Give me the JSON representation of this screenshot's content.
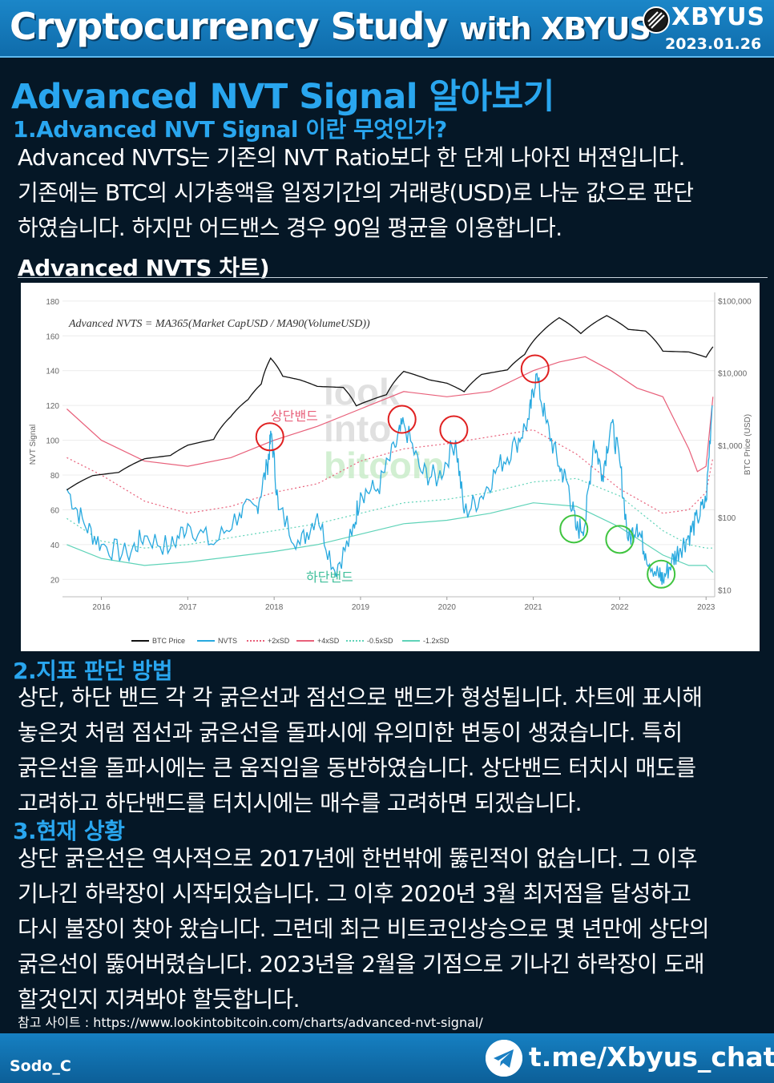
{
  "header": {
    "title_main": "Cryptocurrency Study",
    "title_with": "with XBYUS",
    "brand": "XBYUS",
    "date": "2023.01.26"
  },
  "main_title": "Advanced NVT Signal 알아보기",
  "section1": {
    "heading": "1.Advanced NVT Signal 이란 무엇인가?",
    "lines": [
      "Advanced NVTS는 기존의 NVT Ratio보다 한 단계 나아진 버젼입니다.",
      "기존에는 BTC의 시가총액을 일정기간의 거래량(USD)로 나눈 값으로 판단",
      "하였습니다. 하지만 어드밴스 경우 90일 평균을 이용합니다."
    ]
  },
  "chart_heading": "Advanced NVTS 차트)",
  "chart_data": {
    "type": "line",
    "formula": "Advanced NVTS = MA365(Market CapUSD / MA90(VolumeUSD))",
    "watermark": [
      "look",
      "into",
      "bitcoin"
    ],
    "x_ticks": [
      "2016",
      "2017",
      "2018",
      "2019",
      "2020",
      "2021",
      "2022",
      "2023"
    ],
    "x_range": [
      2015.55,
      2023.1
    ],
    "y_left": {
      "label": "NVT Signal",
      "ticks": [
        20,
        40,
        60,
        80,
        100,
        120,
        140,
        160,
        180
      ],
      "range": [
        10,
        185
      ]
    },
    "y_right": {
      "label": "BTC Price (USD)",
      "ticks": [
        "$10",
        "$100",
        "$1,000",
        "$10,000",
        "$100,000"
      ],
      "scale": "log",
      "range": [
        8,
        130000
      ]
    },
    "annotations": {
      "upper": "상단밴드",
      "lower": "하단밴드"
    },
    "legend": [
      "BTC Price",
      "NVTS",
      "+2xSD",
      "+4xSD",
      "-0.5xSD",
      "-1.2xSD"
    ],
    "legend_placement": "bottom",
    "colors": {
      "btc": "#111111",
      "nvts": "#28a9df",
      "plus2": "#e8607a",
      "plus4": "#e8607a",
      "minus05": "#5fd3b8",
      "minus12": "#5fd3b8",
      "circle_red": "#e02020",
      "circle_green": "#3fc43f"
    },
    "series": [
      {
        "name": "BTC Price",
        "axis": "right",
        "x": [
          2015.6,
          2015.9,
          2016.2,
          2016.5,
          2016.8,
          2017.0,
          2017.3,
          2017.5,
          2017.7,
          2017.85,
          2017.96,
          2018.1,
          2018.3,
          2018.5,
          2018.8,
          2018.95,
          2019.3,
          2019.5,
          2019.8,
          2020.0,
          2020.2,
          2020.4,
          2020.7,
          2020.9,
          2021.1,
          2021.3,
          2021.55,
          2021.85,
          2022.1,
          2022.3,
          2022.5,
          2022.8,
          2023.0,
          2023.08
        ],
        "y": [
          240,
          380,
          420,
          650,
          720,
          1000,
          1200,
          2500,
          4300,
          7000,
          16000,
          9000,
          8000,
          6500,
          6300,
          3500,
          5000,
          10500,
          8000,
          7200,
          5500,
          9500,
          11000,
          18000,
          37000,
          58000,
          35000,
          62000,
          40000,
          38000,
          20000,
          19500,
          16500,
          23000
        ]
      },
      {
        "name": "NVTS",
        "axis": "left",
        "x": [
          2015.6,
          2015.8,
          2016.0,
          2016.3,
          2016.5,
          2016.8,
          2017.0,
          2017.3,
          2017.6,
          2017.8,
          2017.92,
          2017.97,
          2018.05,
          2018.3,
          2018.5,
          2018.7,
          2018.9,
          2019.0,
          2019.2,
          2019.4,
          2019.5,
          2019.7,
          2019.9,
          2020.1,
          2020.2,
          2020.4,
          2020.6,
          2020.8,
          2020.95,
          2021.03,
          2021.15,
          2021.3,
          2021.4,
          2021.5,
          2021.6,
          2021.7,
          2021.8,
          2021.9,
          2022.0,
          2022.1,
          2022.2,
          2022.3,
          2022.45,
          2022.5,
          2022.6,
          2022.7,
          2022.8,
          2022.9,
          2023.0,
          2023.07
        ],
        "y": [
          72,
          52,
          40,
          34,
          45,
          38,
          52,
          40,
          58,
          62,
          85,
          104,
          60,
          40,
          58,
          25,
          45,
          70,
          72,
          96,
          110,
          82,
          78,
          100,
          58,
          68,
          85,
          98,
          112,
          138,
          110,
          85,
          75,
          48,
          52,
          100,
          80,
          110,
          88,
          42,
          52,
          35,
          22,
          20,
          30,
          38,
          45,
          55,
          65,
          120
        ]
      },
      {
        "name": "+2xSD",
        "axis": "left",
        "x": [
          2015.6,
          2016.0,
          2016.5,
          2017.0,
          2017.5,
          2018.0,
          2018.5,
          2019.0,
          2019.5,
          2020.0,
          2020.5,
          2021.0,
          2021.5,
          2022.0,
          2022.5,
          2022.8,
          2023.0,
          2023.08
        ],
        "y": [
          90,
          80,
          65,
          58,
          62,
          70,
          75,
          88,
          95,
          98,
          102,
          106,
          92,
          72,
          58,
          60,
          70,
          90
        ]
      },
      {
        "name": "+4xSD",
        "axis": "left",
        "x": [
          2015.6,
          2016.0,
          2016.5,
          2017.0,
          2017.5,
          2018.0,
          2018.5,
          2019.0,
          2019.5,
          2020.0,
          2020.5,
          2021.0,
          2021.3,
          2021.6,
          2021.9,
          2022.2,
          2022.5,
          2022.8,
          2022.9,
          2023.0,
          2023.08
        ],
        "y": [
          118,
          100,
          88,
          85,
          90,
          100,
          108,
          118,
          128,
          125,
          128,
          140,
          145,
          148,
          140,
          130,
          125,
          95,
          82,
          85,
          125
        ]
      },
      {
        "name": "-0.5xSD",
        "axis": "left",
        "x": [
          2015.6,
          2016.0,
          2016.5,
          2017.0,
          2017.5,
          2018.0,
          2018.5,
          2019.0,
          2019.5,
          2020.0,
          2020.5,
          2021.0,
          2021.5,
          2022.0,
          2022.5,
          2022.8,
          2023.0,
          2023.08
        ],
        "y": [
          55,
          42,
          38,
          40,
          44,
          48,
          52,
          58,
          64,
          66,
          70,
          76,
          78,
          68,
          48,
          40,
          38,
          38
        ]
      },
      {
        "name": "-1.2xSD",
        "axis": "left",
        "x": [
          2015.6,
          2016.0,
          2016.5,
          2017.0,
          2017.5,
          2018.0,
          2018.5,
          2019.0,
          2019.5,
          2020.0,
          2020.5,
          2021.0,
          2021.5,
          2022.0,
          2022.5,
          2022.8,
          2023.0,
          2023.08
        ],
        "y": [
          40,
          32,
          28,
          30,
          33,
          36,
          40,
          46,
          52,
          54,
          58,
          64,
          62,
          50,
          34,
          28,
          28,
          24
        ]
      }
    ],
    "circles_red": [
      {
        "x": 2017.95,
        "y": 102
      },
      {
        "x": 2019.48,
        "y": 112
      },
      {
        "x": 2020.08,
        "y": 106
      },
      {
        "x": 2021.02,
        "y": 141
      }
    ],
    "circles_green": [
      {
        "x": 2021.47,
        "y": 49
      },
      {
        "x": 2022.0,
        "y": 43
      },
      {
        "x": 2022.48,
        "y": 23
      }
    ]
  },
  "section2": {
    "heading": "2.지표 판단 방법",
    "lines": [
      "상단, 하단 밴드 각 각 굵은선과 점선으로 밴드가 형성됩니다. 차트에 표시해",
      "놓은것 처럼 점선과 굵은선을 돌파시에 유의미한 변동이 생겼습니다. 특히",
      "굵은선을 돌파시에는 큰 움직임을 동반하였습니다. 상단밴드 터치시 매도를",
      "고려하고 하단밴드를 터치시에는 매수를 고려하면 되겠습니다."
    ]
  },
  "section3": {
    "heading": "3.현재 상황",
    "lines": [
      "상단 굵은선은 역사적으로 2017년에 한번밖에 뚫린적이 없습니다. 그 이후",
      "기나긴 하락장이 시작되었습니다. 그 이후 2020년 3월 최저점을 달성하고",
      "다시 불장이 찾아 왔습니다. 그런데 최근 비트코인상승으로 몇 년만에 상단의",
      "굵은선이 뚫어버렸습니다. 2023년을 2월을 기점으로 기나긴 하락장이 도래",
      "할것인지 지켜봐야 할듯합니다."
    ]
  },
  "reference": "참고 사이트 : https://www.lookintobitcoin.com/charts/advanced-nvt-signal/",
  "footer": {
    "author": "Sodo_C",
    "link": "t.me/Xbyus_chat"
  }
}
